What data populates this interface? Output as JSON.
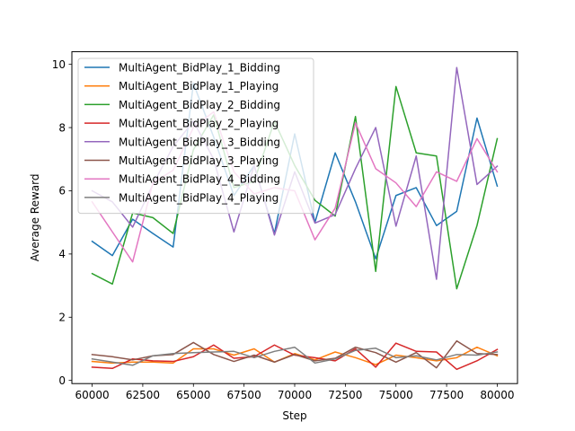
{
  "chart_data": {
    "type": "line",
    "title": "",
    "xlabel": "Step",
    "ylabel": "Average Reward",
    "xlim": [
      59000,
      81000
    ],
    "ylim": [
      -0.1,
      10.4
    ],
    "xticks": [
      60000,
      62500,
      65000,
      67500,
      70000,
      72500,
      75000,
      77500,
      80000
    ],
    "yticks": [
      0,
      2,
      4,
      6,
      8,
      10
    ],
    "grid": false,
    "legend_position": "top-left",
    "x": [
      60000,
      61000,
      62000,
      63000,
      64000,
      65000,
      66000,
      67000,
      68000,
      69000,
      70000,
      71000,
      72000,
      73000,
      74000,
      75000,
      76000,
      77000,
      78000,
      79000,
      80000
    ],
    "series": [
      {
        "name": "MultiAgent_BidPlay_1_Bidding",
        "color": "#1f77b4",
        "values": [
          4.4,
          3.95,
          5.1,
          4.65,
          4.22,
          9.4,
          7.7,
          5.85,
          6.8,
          4.65,
          7.8,
          5.0,
          7.2,
          5.65,
          3.85,
          5.85,
          6.1,
          4.9,
          5.35,
          8.3,
          6.15
        ]
      },
      {
        "name": "MultiAgent_BidPlay_1_Playing",
        "color": "#ff7f0e",
        "values": [
          0.6,
          0.55,
          0.58,
          0.58,
          0.55,
          1.0,
          1.0,
          0.8,
          1.0,
          0.58,
          0.85,
          0.65,
          0.9,
          0.72,
          0.5,
          0.8,
          0.72,
          0.62,
          0.72,
          1.05,
          0.78
        ]
      },
      {
        "name": "MultiAgent_BidPlay_2_Bidding",
        "color": "#2ca02c",
        "values": [
          3.38,
          3.05,
          5.3,
          5.15,
          4.65,
          7.3,
          8.4,
          6.1,
          6.3,
          8.2,
          6.8,
          5.7,
          5.2,
          8.35,
          3.45,
          9.3,
          7.2,
          7.1,
          2.9,
          4.9,
          7.65
        ]
      },
      {
        "name": "MultiAgent_BidPlay_2_Playing",
        "color": "#d62728",
        "values": [
          0.42,
          0.38,
          0.68,
          0.62,
          0.6,
          0.75,
          1.12,
          0.7,
          0.75,
          1.12,
          0.8,
          0.72,
          0.62,
          1.0,
          0.42,
          1.18,
          0.92,
          0.9,
          0.35,
          0.62,
          0.98
        ]
      },
      {
        "name": "MultiAgent_BidPlay_3_Bidding",
        "color": "#9467bd",
        "values": [
          6.0,
          5.65,
          4.85,
          6.2,
          7.4,
          8.2,
          7.0,
          4.7,
          6.8,
          4.6,
          6.6,
          4.98,
          5.25,
          6.7,
          8.0,
          4.88,
          7.1,
          3.2,
          9.9,
          6.2,
          6.78
        ]
      },
      {
        "name": "MultiAgent_BidPlay_3_Playing",
        "color": "#8c564b",
        "values": [
          0.82,
          0.75,
          0.65,
          0.78,
          0.82,
          1.2,
          0.82,
          0.6,
          0.8,
          0.58,
          0.82,
          0.62,
          0.7,
          1.05,
          0.88,
          0.58,
          0.88,
          0.4,
          1.25,
          0.85,
          0.82
        ]
      },
      {
        "name": "MultiAgent_BidPlay_4_Bidding",
        "color": "#e377c2",
        "values": [
          5.65,
          4.7,
          3.75,
          6.25,
          6.65,
          8.0,
          8.5,
          6.6,
          5.9,
          6.1,
          6.0,
          4.45,
          5.45,
          8.15,
          6.7,
          6.25,
          5.5,
          6.6,
          6.3,
          7.65,
          6.6
        ]
      },
      {
        "name": "MultiAgent_BidPlay_4_Playing",
        "color": "#7f7f7f",
        "values": [
          0.68,
          0.58,
          0.48,
          0.78,
          0.85,
          0.88,
          0.9,
          0.92,
          0.72,
          0.92,
          1.05,
          0.55,
          0.68,
          0.95,
          1.02,
          0.72,
          0.78,
          0.65,
          0.82,
          0.8,
          0.9
        ]
      }
    ]
  }
}
